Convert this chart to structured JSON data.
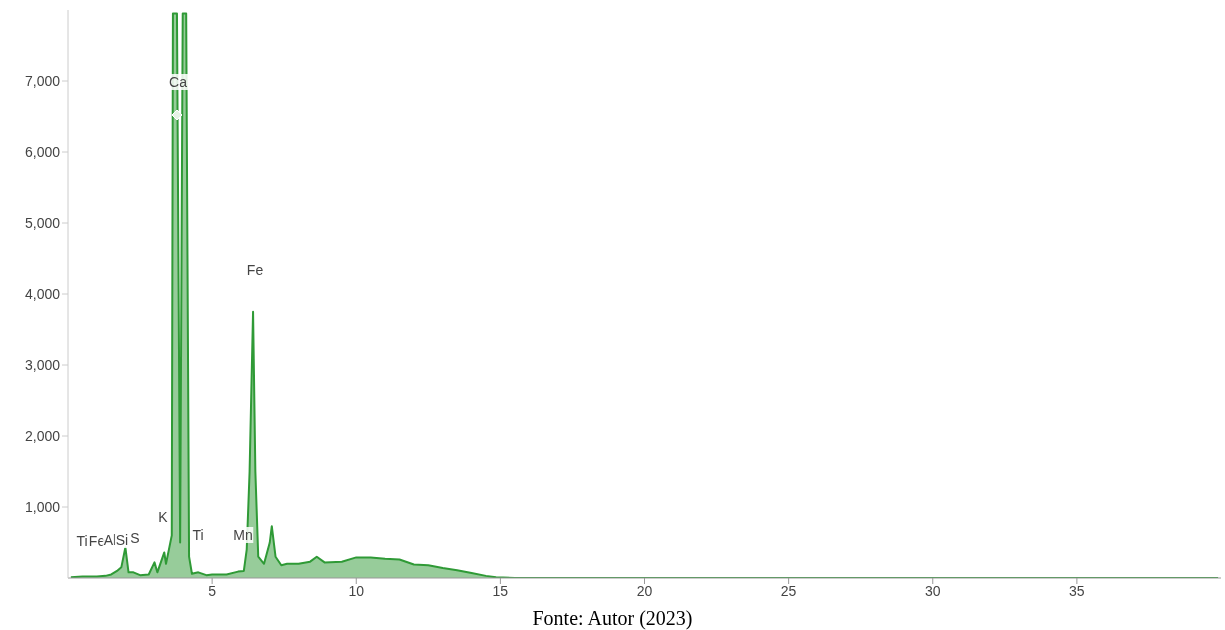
{
  "chart_data": {
    "type": "area",
    "x": [
      0.1,
      0.5,
      1.0,
      1.3,
      1.5,
      1.7,
      1.85,
      1.99,
      2.1,
      2.27,
      2.5,
      2.8,
      3.0,
      3.1,
      3.34,
      3.4,
      3.5,
      3.6,
      3.64,
      3.78,
      3.89,
      3.98,
      4.1,
      4.2,
      4.3,
      4.52,
      4.8,
      5.0,
      5.5,
      5.9,
      6.1,
      6.2,
      6.3,
      6.42,
      6.5,
      6.6,
      6.8,
      7.0,
      7.07,
      7.2,
      7.4,
      7.6,
      8.0,
      8.4,
      8.63,
      8.9,
      9.5,
      10.0,
      10.5,
      11.0,
      11.5,
      12.0,
      12.5,
      13.0,
      13.5,
      14.0,
      14.5,
      14.85,
      15.5,
      20,
      25,
      30,
      35,
      39.9
    ],
    "series": [
      {
        "color": "#2f9a36",
        "values": [
          10,
          20,
          20,
          30,
          50,
          100,
          150,
          430,
          80,
          80,
          40,
          50,
          220,
          80,
          360,
          200,
          400,
          600,
          7950,
          7950,
          500,
          7950,
          7950,
          300,
          60,
          80,
          40,
          50,
          50,
          90,
          100,
          400,
          1500,
          3750,
          1500,
          300,
          200,
          500,
          730,
          300,
          180,
          200,
          200,
          230,
          300,
          220,
          230,
          290,
          290,
          270,
          260,
          190,
          180,
          140,
          110,
          70,
          30,
          10,
          0,
          0,
          0,
          0,
          0,
          0
        ]
      }
    ],
    "xlim": [
      0,
      40
    ],
    "ylim": [
      0,
      8000
    ],
    "xticks": [
      5,
      10,
      15,
      20,
      25,
      30,
      35
    ],
    "yticks": [
      {
        "value": 1000,
        "label": "1,000"
      },
      {
        "value": 2000,
        "label": "2,000"
      },
      {
        "value": 3000,
        "label": "3,000"
      },
      {
        "value": 4000,
        "label": "4,000"
      },
      {
        "value": 5000,
        "label": "5,000"
      },
      {
        "value": 6000,
        "label": "6,000"
      },
      {
        "value": 7000,
        "label": "7,000"
      }
    ],
    "grid": false,
    "legend": false,
    "annotations": [
      "Ti",
      "Fe",
      "Al",
      "Si",
      "S",
      "K",
      "Ca",
      "Ti",
      "Mn",
      "Fe",
      "Fonte: Autor (2023)"
    ]
  }
}
